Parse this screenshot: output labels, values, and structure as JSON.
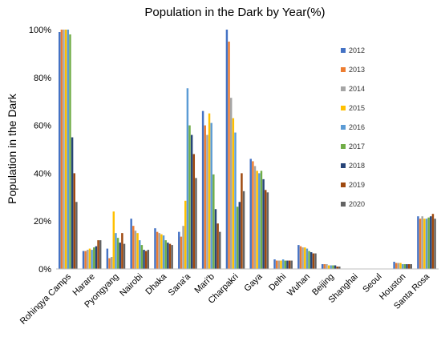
{
  "chart_data": {
    "type": "bar",
    "title": "Population in the Dark by Year(%)",
    "xlabel": "",
    "ylabel": "Population in the Dark",
    "ylim": [
      0,
      100
    ],
    "yticks": [
      "0%",
      "20%",
      "40%",
      "60%",
      "80%",
      "100%"
    ],
    "legend_position": "right",
    "grid": false,
    "categories": [
      "Rohingya Camps",
      "Harare",
      "Pyongyang",
      "Nairobi",
      "Dhaka",
      "Sana'a",
      "Mari'b",
      "Charpakri",
      "Gaya",
      "Delhi",
      "Wuhan",
      "Beijing",
      "Shanghai",
      "Seoul",
      "Houston",
      "Santa Rosa"
    ],
    "series": [
      {
        "name": "2012",
        "color": "#4472C4",
        "values": [
          99,
          7.5,
          8.5,
          21,
          17,
          15.5,
          66,
          100,
          46,
          4,
          10,
          2,
          0,
          0,
          3,
          22
        ]
      },
      {
        "name": "2013",
        "color": "#ED7D31",
        "values": [
          100,
          7.5,
          4.5,
          18,
          15.5,
          13.5,
          60,
          95,
          45,
          3.5,
          9.5,
          2,
          0,
          0,
          2.5,
          21
        ]
      },
      {
        "name": "2014",
        "color": "#A5A5A5",
        "values": [
          100,
          8,
          5,
          16,
          15,
          18,
          56,
          71.5,
          43,
          3.5,
          9,
          2,
          0,
          0,
          2.5,
          22
        ]
      },
      {
        "name": "2015",
        "color": "#FFC000",
        "values": [
          100,
          8.5,
          24,
          15,
          14.5,
          28.5,
          65,
          63,
          41,
          3.5,
          9,
          1.5,
          0,
          0,
          2.5,
          21
        ]
      },
      {
        "name": "2016",
        "color": "#5B9BD5",
        "values": [
          100,
          8,
          15,
          12,
          14,
          75.5,
          61,
          57,
          40,
          4,
          8.5,
          1.5,
          0,
          0,
          2,
          21
        ]
      },
      {
        "name": "2017",
        "color": "#70AD47",
        "values": [
          98,
          9,
          13,
          10,
          12,
          60,
          39.5,
          26,
          41,
          3.5,
          7.5,
          1.5,
          0,
          0,
          2,
          21.5
        ]
      },
      {
        "name": "2018",
        "color": "#264478",
        "values": [
          55,
          9.5,
          11,
          8,
          11,
          56,
          25,
          28,
          37.5,
          3.5,
          7,
          1.5,
          0,
          0,
          2,
          22
        ]
      },
      {
        "name": "2019",
        "color": "#9E480E",
        "values": [
          40,
          12,
          15,
          7.5,
          10.5,
          48,
          19,
          40,
          33,
          3.5,
          6.5,
          1,
          0,
          0,
          2,
          23
        ]
      },
      {
        "name": "2020",
        "color": "#636363",
        "values": [
          28,
          12,
          10.5,
          8,
          10,
          38,
          15.5,
          32.5,
          32,
          3.5,
          6.5,
          1,
          0,
          0,
          2,
          21
        ]
      }
    ]
  }
}
